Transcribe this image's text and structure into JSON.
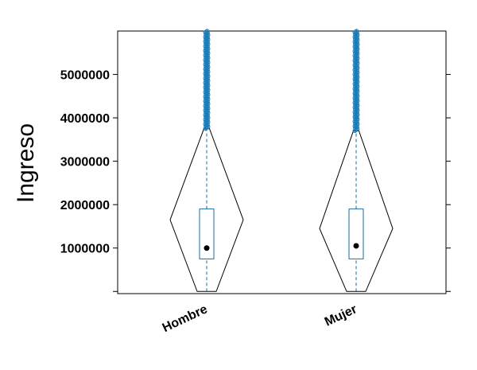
{
  "chart_data": {
    "type": "violin-box",
    "title": "",
    "xlabel": "",
    "ylabel": "Ingreso",
    "categories": [
      "Hombre",
      "Mujer"
    ],
    "ylim": [
      -50000,
      6000000
    ],
    "yticks": [
      1000000,
      2000000,
      3000000,
      4000000,
      5000000
    ],
    "ytick_labels": [
      "1000000",
      "2000000",
      "3000000",
      "4000000",
      "5000000"
    ],
    "grid": false,
    "colors": {
      "box": "#1a6e9e",
      "outlier": "#1a7db8",
      "violin": "#000000",
      "median": "#000000"
    },
    "series": [
      {
        "category": "Hombre",
        "median": 1000000,
        "q1": 750000,
        "q3": 1900000,
        "whisker_low": 0,
        "whisker_high": 3750000,
        "violin_max_density_at": 1650000,
        "outliers_range": [
          3750000,
          6000000
        ]
      },
      {
        "category": "Mujer",
        "median": 1050000,
        "q1": 750000,
        "q3": 1900000,
        "whisker_low": 0,
        "whisker_high": 3700000,
        "violin_max_density_at": 1450000,
        "outliers_range": [
          3700000,
          6000000
        ]
      }
    ]
  }
}
